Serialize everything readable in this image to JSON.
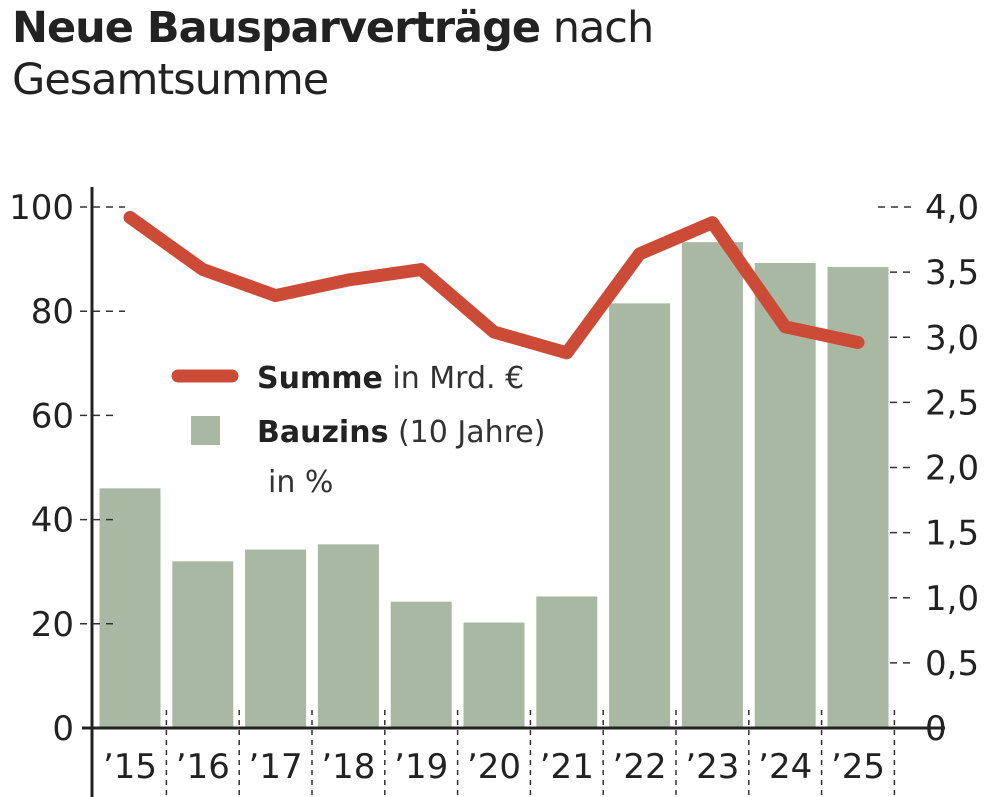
{
  "title": {
    "bold": "Neue Bausparverträge",
    "regular": "nach",
    "line2": "Gesamtsumme"
  },
  "chart_data": {
    "type": "bar+line",
    "categories": [
      "’15",
      "’16",
      "’17",
      "’18",
      "’19",
      "’20",
      "’21",
      "’22",
      "’23",
      "’24",
      "’25"
    ],
    "series": [
      {
        "name": "Summe",
        "name_suffix": "in Mrd. €",
        "type": "line",
        "axis": "left",
        "color": "#cc4b37",
        "values": [
          98,
          88,
          83,
          86,
          88,
          76,
          72,
          91,
          97,
          77,
          74
        ]
      },
      {
        "name": "Bauzins",
        "name_suffix": "(10 Jahre)",
        "name_line2": "in %",
        "type": "bar",
        "axis": "right",
        "color": "#a9b8a2",
        "values": [
          1.84,
          1.28,
          1.37,
          1.41,
          0.97,
          0.81,
          1.01,
          3.26,
          3.73,
          3.57,
          3.54
        ]
      }
    ],
    "left_axis": {
      "ylim": [
        0,
        100
      ],
      "ticks": [
        "0",
        "20",
        "40",
        "60",
        "80",
        "100"
      ],
      "values": [
        0,
        20,
        40,
        60,
        80,
        100
      ]
    },
    "right_axis": {
      "ylim": [
        0,
        4
      ],
      "ticks": [
        "0",
        "0,5",
        "1,0",
        "1,5",
        "2,0",
        "2,5",
        "3,0",
        "3,5",
        "4,0"
      ],
      "values": [
        0,
        0.5,
        1,
        1.5,
        2,
        2.5,
        3,
        3.5,
        4
      ]
    },
    "legend": "center-left",
    "grid": false
  }
}
